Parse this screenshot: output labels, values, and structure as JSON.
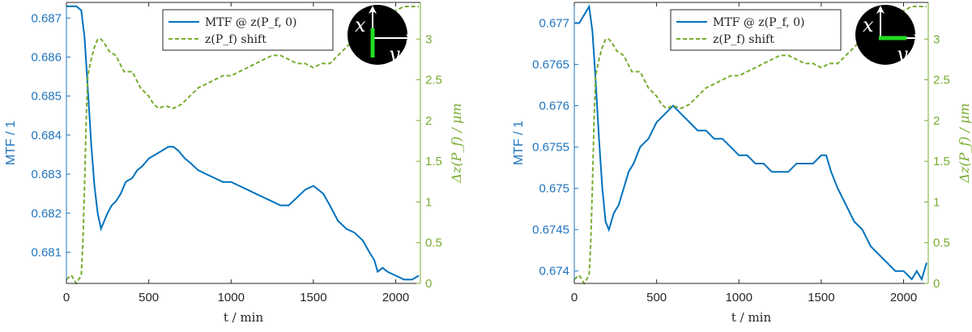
{
  "chart_data": [
    {
      "type": "line",
      "title": "",
      "xlabel": "t / min",
      "ylabel": "MTF / 1",
      "ylabel_right": "Δz(P_f) / μm",
      "xlim": [
        0,
        2150
      ],
      "ylim": [
        0.6802,
        0.6874
      ],
      "ylim_right": [
        0,
        3.45
      ],
      "xticks": [
        "0",
        "500",
        "1000",
        "1500",
        "2000"
      ],
      "yticks": [
        "0.681",
        "0.682",
        "0.683",
        "0.684",
        "0.685",
        "0.686",
        "0.687"
      ],
      "yticks_right": [
        "0",
        "0.5",
        "1",
        "1.5",
        "2",
        "2.5",
        "3"
      ],
      "legend_position": "top-right",
      "badge": {
        "axis1": "x",
        "axis2": "y",
        "marker_direction": "vertical"
      },
      "series": [
        {
          "name": "MTF @ z(P_f, 0)",
          "axis": "left",
          "color": "#0072bd",
          "style": "solid",
          "x": [
            0,
            30,
            60,
            90,
            110,
            130,
            150,
            170,
            190,
            210,
            230,
            250,
            275,
            300,
            330,
            360,
            400,
            430,
            460,
            500,
            540,
            580,
            620,
            650,
            680,
            720,
            750,
            800,
            850,
            900,
            950,
            1000,
            1050,
            1100,
            1150,
            1200,
            1250,
            1300,
            1350,
            1400,
            1450,
            1500,
            1530,
            1560,
            1600,
            1650,
            1700,
            1750,
            1800,
            1840,
            1870,
            1890,
            1920,
            1950,
            2000,
            2050,
            2100,
            2140
          ],
          "y": [
            0.6873,
            0.6873,
            0.6873,
            0.6872,
            0.6865,
            0.6852,
            0.6838,
            0.6827,
            0.682,
            0.6816,
            0.6818,
            0.682,
            0.6822,
            0.6823,
            0.6825,
            0.6828,
            0.6829,
            0.6831,
            0.6832,
            0.6834,
            0.6835,
            0.6836,
            0.6837,
            0.6837,
            0.6836,
            0.6834,
            0.6833,
            0.6831,
            0.683,
            0.6829,
            0.6828,
            0.6828,
            0.6827,
            0.6826,
            0.6825,
            0.6824,
            0.6823,
            0.6822,
            0.6822,
            0.6824,
            0.6826,
            0.6827,
            0.6826,
            0.6825,
            0.6822,
            0.6818,
            0.6816,
            0.6815,
            0.6813,
            0.681,
            0.6808,
            0.6805,
            0.6806,
            0.6805,
            0.6804,
            0.6803,
            0.6803,
            0.6804
          ]
        },
        {
          "name": "z(P_f) shift",
          "axis": "right",
          "color": "#77ac30",
          "style": "dashed",
          "x": [
            0,
            30,
            60,
            90,
            100,
            110,
            120,
            130,
            150,
            170,
            190,
            210,
            230,
            260,
            300,
            350,
            400,
            450,
            500,
            530,
            560,
            600,
            650,
            700,
            750,
            800,
            850,
            900,
            950,
            1000,
            1050,
            1100,
            1150,
            1200,
            1250,
            1300,
            1350,
            1400,
            1450,
            1500,
            1550,
            1600,
            1650,
            1700,
            1750,
            1800,
            1850,
            1900,
            1950,
            2000,
            2050,
            2100,
            2140
          ],
          "y": [
            0.05,
            0.1,
            0.0,
            0.1,
            0.5,
            1.2,
            2.0,
            2.55,
            2.75,
            2.9,
            3.0,
            3.0,
            2.95,
            2.85,
            2.8,
            2.6,
            2.6,
            2.4,
            2.3,
            2.2,
            2.15,
            2.18,
            2.15,
            2.2,
            2.3,
            2.4,
            2.45,
            2.5,
            2.55,
            2.55,
            2.6,
            2.65,
            2.7,
            2.75,
            2.8,
            2.8,
            2.75,
            2.7,
            2.7,
            2.65,
            2.7,
            2.7,
            2.8,
            2.9,
            3.0,
            3.1,
            3.2,
            3.25,
            3.3,
            3.35,
            3.4,
            3.4,
            3.4
          ]
        }
      ]
    },
    {
      "type": "line",
      "title": "",
      "xlabel": "t / min",
      "ylabel": "MTF / 1",
      "ylabel_right": "Δz(P_f) / μm",
      "xlim": [
        0,
        2150
      ],
      "ylim": [
        0.67385,
        0.67725
      ],
      "ylim_right": [
        0,
        3.45
      ],
      "xticks": [
        "0",
        "500",
        "1000",
        "1500",
        "2000"
      ],
      "yticks": [
        "0.674",
        "0.6745",
        "0.675",
        "0.6755",
        "0.676",
        "0.6765",
        "0.677"
      ],
      "yticks_right": [
        "0",
        "0.5",
        "1",
        "1.5",
        "2",
        "2.5",
        "3"
      ],
      "legend_position": "top-right",
      "badge": {
        "axis1": "x",
        "axis2": "y",
        "marker_direction": "horizontal"
      },
      "series": [
        {
          "name": "MTF @ z(P_f, 0)",
          "axis": "left",
          "color": "#0072bd",
          "style": "solid",
          "x": [
            0,
            30,
            60,
            90,
            110,
            130,
            150,
            170,
            190,
            210,
            240,
            270,
            300,
            330,
            360,
            400,
            450,
            500,
            550,
            600,
            650,
            700,
            750,
            800,
            850,
            900,
            950,
            1000,
            1050,
            1100,
            1150,
            1200,
            1250,
            1300,
            1350,
            1400,
            1450,
            1500,
            1530,
            1560,
            1600,
            1650,
            1700,
            1750,
            1800,
            1850,
            1900,
            1950,
            2000,
            2050,
            2080,
            2110,
            2140
          ],
          "y": [
            0.677,
            0.677,
            0.6771,
            0.6772,
            0.6769,
            0.6763,
            0.6756,
            0.675,
            0.6746,
            0.6745,
            0.6747,
            0.6748,
            0.675,
            0.6752,
            0.6753,
            0.6755,
            0.6756,
            0.6758,
            0.6759,
            0.676,
            0.6759,
            0.6758,
            0.6757,
            0.6757,
            0.6756,
            0.6756,
            0.6755,
            0.6754,
            0.6754,
            0.6753,
            0.6753,
            0.6752,
            0.6752,
            0.6752,
            0.6753,
            0.6753,
            0.6753,
            0.6754,
            0.6754,
            0.6752,
            0.675,
            0.6748,
            0.6746,
            0.6745,
            0.6743,
            0.6742,
            0.6741,
            0.674,
            0.674,
            0.6739,
            0.674,
            0.6739,
            0.6741
          ]
        },
        {
          "name": "z(P_f) shift",
          "axis": "right",
          "color": "#77ac30",
          "style": "dashed",
          "x": [
            0,
            30,
            60,
            90,
            100,
            110,
            120,
            130,
            150,
            170,
            190,
            210,
            230,
            260,
            300,
            350,
            400,
            450,
            500,
            530,
            560,
            600,
            650,
            700,
            750,
            800,
            850,
            900,
            950,
            1000,
            1050,
            1100,
            1150,
            1200,
            1250,
            1300,
            1350,
            1400,
            1450,
            1500,
            1550,
            1600,
            1650,
            1700,
            1750,
            1800,
            1850,
            1900,
            1950,
            2000,
            2050,
            2100,
            2140
          ],
          "y": [
            0.05,
            0.1,
            0.0,
            0.1,
            0.5,
            1.2,
            2.0,
            2.55,
            2.75,
            2.9,
            3.0,
            3.0,
            2.95,
            2.85,
            2.8,
            2.6,
            2.6,
            2.4,
            2.3,
            2.2,
            2.15,
            2.18,
            2.15,
            2.2,
            2.3,
            2.4,
            2.45,
            2.5,
            2.55,
            2.55,
            2.6,
            2.65,
            2.7,
            2.75,
            2.8,
            2.8,
            2.75,
            2.7,
            2.7,
            2.65,
            2.7,
            2.7,
            2.8,
            2.9,
            3.0,
            3.1,
            3.2,
            3.25,
            3.3,
            3.35,
            3.4,
            3.4,
            3.4
          ]
        }
      ]
    }
  ]
}
